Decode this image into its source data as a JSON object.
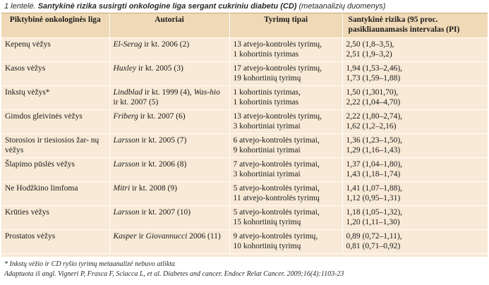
{
  "caption": {
    "number": "1 lentelė.",
    "title": "Santykinė rizika susirgti onkologine liga  sergant cukriniu diabetu (CD)",
    "source": "(metaanalizių duomenys)"
  },
  "table": {
    "headers": [
      "Piktybinė onkologinės liga",
      "Autoriai",
      "Tyrimų tipai",
      "Santykinė rizika (95 proc. pasikliaunamasis intervalas (PI)"
    ],
    "rows": [
      {
        "disease": "Kepenų vėžys",
        "authors": [
          {
            "name": "El-Serag",
            "rest": " ir kt. 2006 (2)"
          }
        ],
        "studies": [
          "13 atvejo-kontrolės tyrimų,",
          "1 kohortinis tyrimas"
        ],
        "risks": [
          "2,50 (1,8–3,5),",
          "2,51 (1,9–3,2)"
        ]
      },
      {
        "disease": "Kasos vėžys",
        "authors": [
          {
            "name": "Huxley",
            "rest": " ir kt. 2005 (3)"
          }
        ],
        "studies": [
          "17 atvejo-kontrolės tyrimų,",
          "19 kohortinių tyrimų"
        ],
        "risks": [
          "1,94 (1,53–2,46),",
          "1,73 (1,59–1,88)"
        ]
      },
      {
        "disease": "Inkstų vėžys*",
        "authors": [
          {
            "name": "Lindblad",
            "rest": " ir kt. 1999 (4), "
          },
          {
            "name": "Was-",
            "rest": ""
          },
          {
            "name": "hio",
            "rest": " ir kt. 2007 (5)"
          }
        ],
        "studies": [
          "1 kohortinis tyrimas,",
          "1 kohortinis tyrimas"
        ],
        "risks": [
          "1,50 (1,301,70),",
          "2,22 (1,04–4,70)"
        ]
      },
      {
        "disease": "Gimdos gleivinės vėžys",
        "authors": [
          {
            "name": "Friberg",
            "rest": " ir kt. 2007 (6)"
          }
        ],
        "studies": [
          "13 atvejo-kontrolės tyrimų,",
          "3 kohortiniai tyrimai"
        ],
        "risks": [
          "2,22 (1,80–2,74),",
          "1,62 (1,2–2,16)"
        ]
      },
      {
        "disease": "Storosios ir tiesiosios žar- nų vėžys",
        "authors": [
          {
            "name": "Larsson",
            "rest": " ir kt. 2005 (7)"
          }
        ],
        "studies": [
          "6 atvejo-kontrolės tyrimai,",
          "9 kohortiniai tyrimai"
        ],
        "risks": [
          "1,36 (1,23–1,50),",
          "1,29 (1,16–1,43)"
        ]
      },
      {
        "disease": "Šlapimo pūslės vėžys",
        "authors": [
          {
            "name": "Larsson",
            "rest": " ir kt. 2006 (8)"
          }
        ],
        "studies": [
          "7 atvejo-kontrolės tyrimai,",
          "3 kohortiniai tyrimai"
        ],
        "risks": [
          "1,37 (1,04–1,80),",
          "1,43 (1,18–1,74)"
        ]
      },
      {
        "disease": "Ne Hodžkino limfoma",
        "authors": [
          {
            "name": "Mitri",
            "rest": " ir kt. 2008 (9)"
          }
        ],
        "studies": [
          "5 atvejo-kontrolės tyrimai,",
          "11 atvejo-kontrolės tyrimų"
        ],
        "risks": [
          "1,41 (1,07–1,88),",
          "1,12 (0,95–1,31)"
        ]
      },
      {
        "disease": "Krūties vėžys",
        "authors": [
          {
            "name": "Larsson",
            "rest": " ir kt. 2007 (10)"
          }
        ],
        "studies": [
          "5 atvejo-kontrolės tyrimai,",
          "15 kohortinių tyrimų"
        ],
        "risks": [
          "1,18 (1,05–1,32),",
          "1,20 (1,11–1,30)"
        ]
      },
      {
        "disease": "Prostatos vėžys",
        "authors": [
          {
            "name": "Kasper",
            "rest": " ir "
          },
          {
            "name": "Giovannucci",
            "rest": " 2006 (11)"
          }
        ],
        "studies": [
          "9 atvejo-kontrolės tyrimų,",
          "10 kohortinių tyrimų"
        ],
        "risks": [
          "0,89 (0,72–1,11),",
          "0,81 (0,71–0,92)"
        ]
      }
    ]
  },
  "footnotes": [
    "* Inkstų vėžio ir CD ryšio tyrimų metaanalizė nebuvo atlikta",
    "Adaptuota iš angl. Vigneri P, Frasca F, Sciacca L, et al. Diabetes and cancer. Endocr Relat Cancer. 2009;16(4):1103-23"
  ]
}
